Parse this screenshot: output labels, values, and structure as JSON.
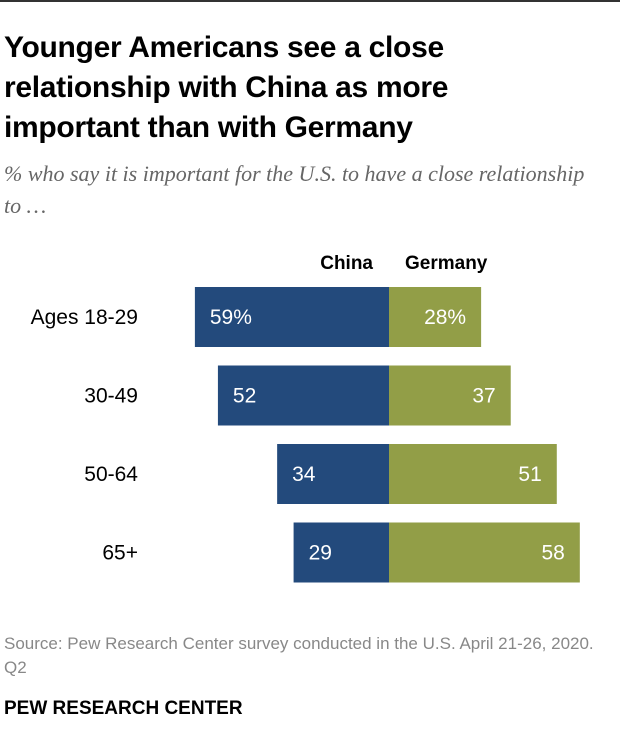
{
  "title": "Younger Americans see a close relationship with China as more important than with Germany",
  "subtitle": "% who say it is important for the U.S. to have a close relationship to …",
  "source": "Source: Pew Research Center survey conducted in the U.S. April 21-26, 2020. Q2",
  "credit": "PEW RESEARCH CENTER",
  "colors": {
    "china": "#234a7c",
    "germany": "#929e47"
  },
  "chart_data": {
    "type": "bar",
    "orientation": "horizontal-diverging",
    "categories": [
      "Ages 18-29",
      "30-49",
      "50-64",
      "65+"
    ],
    "series": [
      {
        "name": "China",
        "values": [
          59,
          52,
          34,
          29
        ],
        "labels": [
          "59%",
          "52",
          "34",
          "29"
        ]
      },
      {
        "name": "Germany",
        "values": [
          28,
          37,
          51,
          58
        ],
        "labels": [
          "28%",
          "37",
          "51",
          "58"
        ]
      }
    ]
  }
}
